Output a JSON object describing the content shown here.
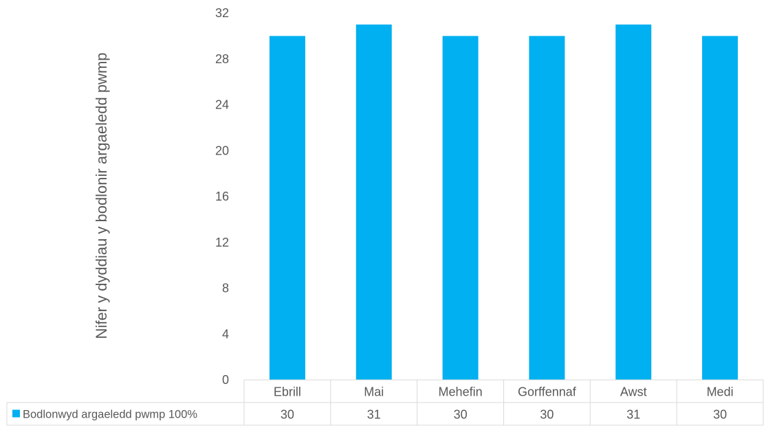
{
  "chart_data": {
    "type": "bar",
    "title": "",
    "xlabel": "",
    "ylabel": "Nifer y dyddiau y bodlonir argaeledd pwmp",
    "ylim": [
      0,
      32
    ],
    "yticks": [
      "0",
      "4",
      "8",
      "12",
      "16",
      "20",
      "24",
      "28",
      "32"
    ],
    "grid": false,
    "categories": [
      "Ebrill",
      "Mai",
      "Mehefin",
      "Gorffennaf",
      "Awst",
      "Medi"
    ],
    "series": [
      {
        "name": "Bodlonwyd argaeledd pwmp 100%",
        "values": [
          30,
          31,
          30,
          30,
          31,
          30
        ],
        "color": "#00b0f0"
      }
    ],
    "data_table": true,
    "legend_placement": "data-table-left"
  }
}
